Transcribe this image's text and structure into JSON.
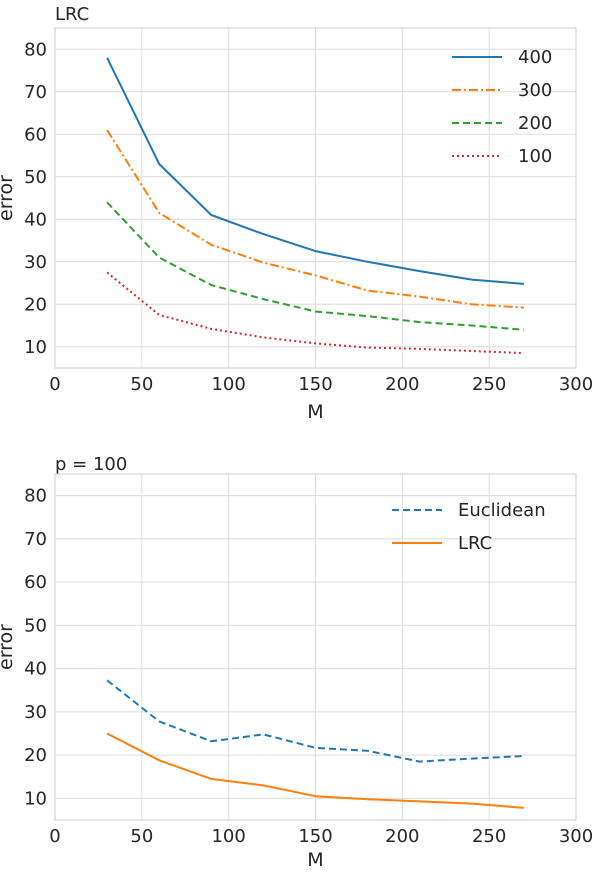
{
  "chart_data": [
    {
      "type": "line",
      "title": "LRC",
      "xlabel": "M",
      "ylabel": "error",
      "xlim": [
        0,
        300
      ],
      "ylim": [
        5,
        85
      ],
      "xticks": [
        0,
        50,
        100,
        150,
        200,
        250,
        300
      ],
      "yticks": [
        10,
        20,
        30,
        40,
        50,
        60,
        70,
        80
      ],
      "grid": true,
      "legend_position": "top-right",
      "x": [
        30,
        60,
        90,
        120,
        150,
        180,
        210,
        240,
        270
      ],
      "series": [
        {
          "name": "400",
          "color": "#1f77b4",
          "dash": "solid",
          "values": [
            78,
            53,
            41,
            36.5,
            32.5,
            30,
            27.8,
            25.8,
            24.8
          ]
        },
        {
          "name": "300",
          "color": "#ff7f0e",
          "dash": "dashdot",
          "values": [
            61,
            41.5,
            34,
            29.8,
            26.8,
            23.2,
            21.8,
            20,
            19.2
          ]
        },
        {
          "name": "200",
          "color": "#2ca02c",
          "dash": "dashed",
          "values": [
            44,
            31,
            24.5,
            21.2,
            18.3,
            17.2,
            15.8,
            15,
            14
          ]
        },
        {
          "name": "100",
          "color": "#d62728",
          "dash": "dotted",
          "values": [
            27.5,
            17.5,
            14.2,
            12.2,
            10.8,
            9.8,
            9.5,
            9,
            8.5
          ]
        }
      ]
    },
    {
      "type": "line",
      "title": "p = 100",
      "xlabel": "M",
      "ylabel": "error",
      "xlim": [
        0,
        300
      ],
      "ylim": [
        5,
        85
      ],
      "xticks": [
        0,
        50,
        100,
        150,
        200,
        250,
        300
      ],
      "yticks": [
        10,
        20,
        30,
        40,
        50,
        60,
        70,
        80
      ],
      "grid": true,
      "legend_position": "top-right",
      "x": [
        30,
        60,
        90,
        120,
        150,
        180,
        210,
        240,
        270
      ],
      "series": [
        {
          "name": "Euclidean",
          "color": "#1f77b4",
          "dash": "dashed",
          "values": [
            37.3,
            27.8,
            23.2,
            24.8,
            21.7,
            21,
            18.5,
            19.2,
            19.8
          ]
        },
        {
          "name": "LRC",
          "color": "#ff7f0e",
          "dash": "solid",
          "values": [
            25,
            18.8,
            14.5,
            13,
            10.5,
            9.8,
            9.3,
            8.8,
            7.8
          ]
        }
      ]
    }
  ]
}
